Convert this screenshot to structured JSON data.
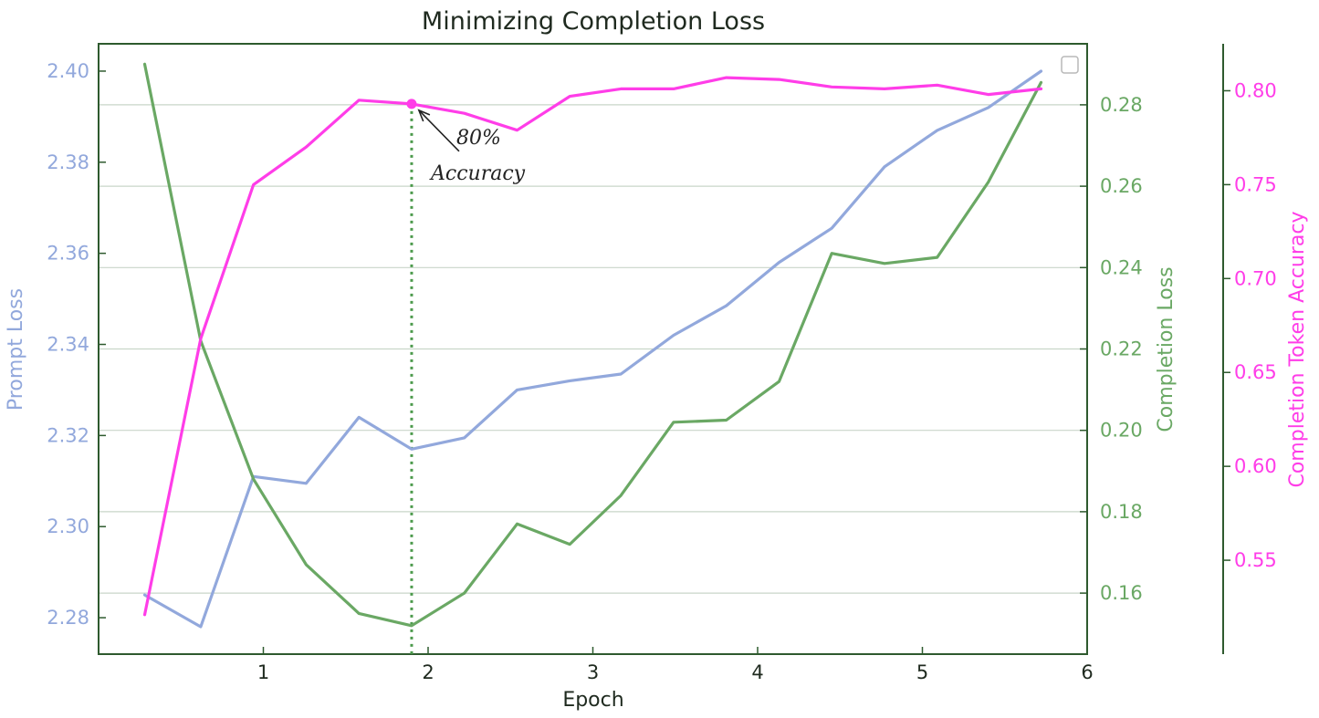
{
  "colors": {
    "prompt": "#92a8dc",
    "completion": "#6aa864",
    "accuracy": "#ff3de8",
    "frame": "#2e5a2e",
    "grid": "#c9d6c9",
    "marker_line": "#4c9a4c"
  },
  "chart_data": {
    "type": "line",
    "title": "Minimizing Completion Loss",
    "xlabel": "Epoch",
    "xlim": [
      0.0,
      6.0
    ],
    "xticks": [
      1,
      2,
      3,
      4,
      5,
      6
    ],
    "grid": {
      "horizontal": true,
      "vertical": false
    },
    "legend": {
      "placement": "top-right",
      "entries": []
    },
    "x": [
      0.28,
      0.62,
      0.94,
      1.26,
      1.58,
      1.9,
      2.22,
      2.54,
      2.86,
      3.17,
      3.49,
      3.81,
      4.13,
      4.45,
      4.77,
      5.09,
      5.4,
      5.72
    ],
    "axes": {
      "left": {
        "label": "Prompt Loss",
        "ylim": [
          2.272,
          2.406
        ],
        "ticks": [
          "2.28",
          "2.30",
          "2.32",
          "2.34",
          "2.36",
          "2.38",
          "2.40"
        ]
      },
      "right1": {
        "label": "Completion Loss",
        "ylim": [
          0.145,
          0.295
        ],
        "ticks": [
          "0.16",
          "0.18",
          "0.20",
          "0.22",
          "0.24",
          "0.26",
          "0.28"
        ]
      },
      "right2": {
        "label": "Completion Token Accuracy",
        "ylim": [
          0.5,
          0.825
        ],
        "ticks": [
          "0.55",
          "0.60",
          "0.65",
          "0.70",
          "0.75",
          "0.80"
        ]
      }
    },
    "series": [
      {
        "axis": "left",
        "color_key": "prompt",
        "values": [
          2.285,
          2.278,
          2.311,
          2.3095,
          2.324,
          2.317,
          2.3195,
          2.33,
          2.332,
          2.3335,
          2.342,
          2.3485,
          2.358,
          2.3655,
          2.379,
          2.387,
          2.392,
          2.4
        ]
      },
      {
        "axis": "right1",
        "color_key": "completion",
        "values": [
          0.29,
          0.222,
          0.188,
          0.167,
          0.155,
          0.152,
          0.16,
          0.177,
          0.172,
          0.184,
          0.202,
          0.2025,
          0.212,
          0.2435,
          0.241,
          0.2425,
          0.261,
          0.2855
        ]
      },
      {
        "axis": "right2",
        "color_key": "accuracy",
        "values": [
          0.521,
          0.668,
          0.75,
          0.77,
          0.795,
          0.793,
          0.788,
          0.779,
          0.797,
          0.801,
          0.801,
          0.807,
          0.806,
          0.802,
          0.801,
          0.803,
          0.798,
          0.801
        ]
      }
    ],
    "annotation": {
      "text_line1": "80%",
      "text_line2": "Accuracy",
      "x": 1.9,
      "y": 0.793,
      "axis": "right2"
    }
  }
}
